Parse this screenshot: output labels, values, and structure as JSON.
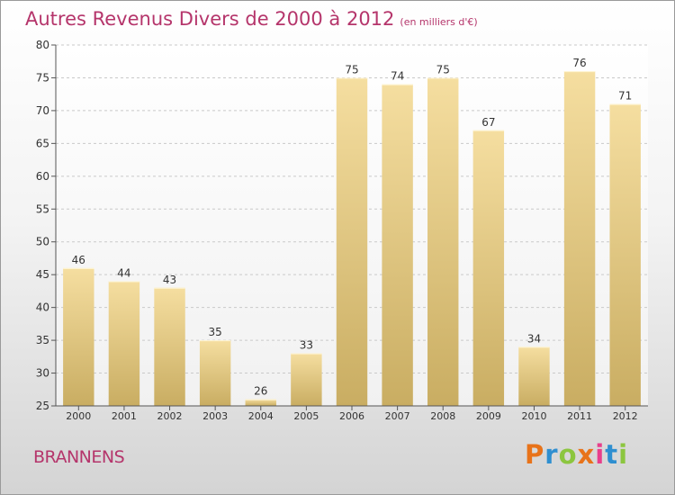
{
  "header": {
    "title": "Autres Revenus Divers de 2000 à 2012",
    "unit": "(en milliers d'€)"
  },
  "footer": {
    "location": "BRANNENS",
    "logo_text": "Proxiti"
  },
  "colors": {
    "title": "#b5356b",
    "bar_light": "#f5dea0",
    "bar_dark": "#c9ad62",
    "logo": [
      "#e8731a",
      "#2f8fd0",
      "#8cc63f",
      "#e8731a",
      "#e83f8c",
      "#2f8fd0",
      "#8cc63f"
    ]
  },
  "chart_data": {
    "type": "bar",
    "categories": [
      "2000",
      "2001",
      "2002",
      "2003",
      "2004",
      "2005",
      "2006",
      "2007",
      "2008",
      "2009",
      "2010",
      "2011",
      "2012"
    ],
    "values": [
      46,
      44,
      43,
      35,
      26,
      33,
      75,
      74,
      75,
      67,
      34,
      76,
      71
    ],
    "ylim": [
      25,
      80
    ],
    "yticks": [
      25,
      30,
      35,
      40,
      45,
      50,
      55,
      60,
      65,
      70,
      75,
      80
    ],
    "grid": true,
    "data_labels": true
  }
}
